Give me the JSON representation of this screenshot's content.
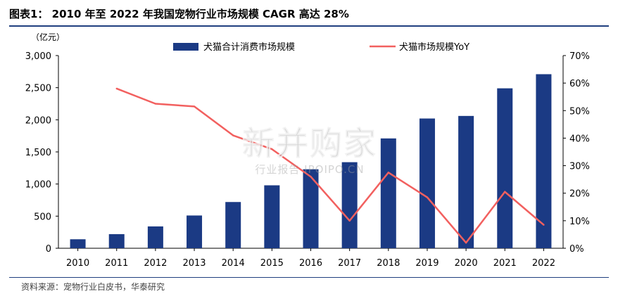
{
  "title": "图表1： 2010 年至 2022 年我国宠物行业市场规模 CAGR 高达 28%",
  "source": "资料来源：宠物行业白皮书，华泰研究",
  "watermark": {
    "main": "新并购家",
    "sub": "行业报告 IPOIPO.CN"
  },
  "colors": {
    "bar": "#1b3a84",
    "line": "#f2605f",
    "rule": "#1f3f7f"
  },
  "chart_data": {
    "type": "bar",
    "categories": [
      "2010",
      "2011",
      "2012",
      "2013",
      "2014",
      "2015",
      "2016",
      "2017",
      "2018",
      "2019",
      "2020",
      "2021",
      "2022"
    ],
    "ylabel": "（亿元）",
    "ylim": [
      0,
      3000
    ],
    "yticks": [
      "0",
      "500",
      "1,000",
      "1,500",
      "2,000",
      "2,500",
      "3,000"
    ],
    "y2lim": [
      0,
      70
    ],
    "y2ticks": [
      "0%",
      "10%",
      "20%",
      "30%",
      "40%",
      "50%",
      "60%",
      "70%"
    ],
    "grid": false,
    "legend": "top",
    "series": [
      {
        "name": "犬猫合计消费市场规模",
        "type": "bar",
        "axis": "left",
        "values": [
          140,
          220,
          340,
          510,
          720,
          980,
          1230,
          1340,
          1710,
          2020,
          2060,
          2490,
          2710
        ]
      },
      {
        "name": "犬猫市场规模YoY",
        "type": "line",
        "axis": "right",
        "values": [
          null,
          58,
          52.5,
          51.5,
          41,
          36,
          26,
          10,
          27.5,
          18.5,
          2,
          20.5,
          8.5
        ]
      }
    ]
  }
}
